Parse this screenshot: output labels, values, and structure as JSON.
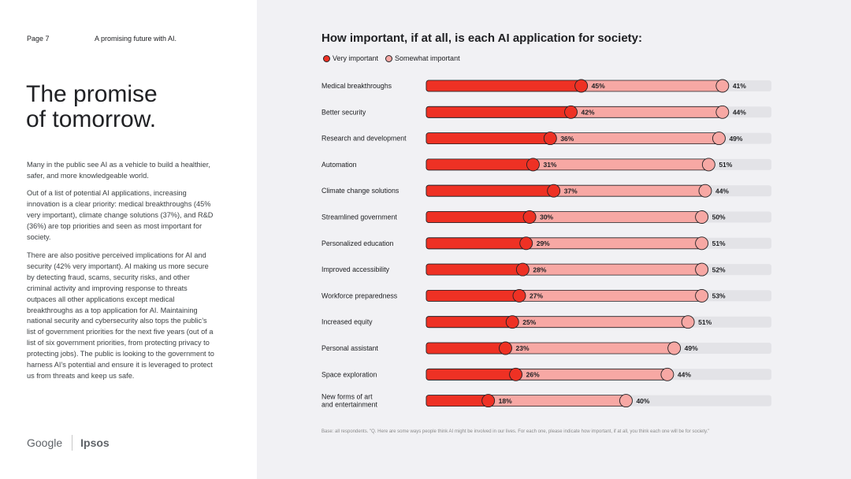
{
  "header": {
    "page": "Page 7",
    "section": "A promising future with AI."
  },
  "title": {
    "line1": "The promise",
    "line2": "of tomorrow."
  },
  "body": {
    "p1": "Many in the public see AI as a vehicle to build a healthier, safer, and more knowledgeable world.",
    "p2": "Out of a list of potential AI applications, increasing innovation is a clear priority: medical breakthroughs (45% very important), climate change solutions (37%), and R&D (36%) are top priorities and seen as most important for society.",
    "p3": "There are also positive perceived implications for AI and security (42% very important). AI making us more secure by detecting fraud, scams, security risks, and other criminal activity and improving response to threats outpaces all other applications except medical breakthroughs as a top application for AI. Maintaining national security and cybersecurity also tops the public’s list of government priorities for the next five years (out of a list of six government priorities, from protecting privacy to protecting jobs). The public is looking to the government to harness AI’s potential and ensure it is leveraged to protect us from threats and keep us safe."
  },
  "logos": {
    "google": "Google",
    "ipsos": "Ipsos"
  },
  "colors": {
    "very": "#ee3124",
    "somewhat": "#f7a8a4",
    "track": "#e3e3e7"
  },
  "chart_data": {
    "type": "bar",
    "stacked": true,
    "orientation": "horizontal",
    "title": "How important, if at all, is each AI application for society:",
    "legend": [
      "Very important",
      "Somewhat important"
    ],
    "xlim": [
      0,
      100
    ],
    "categories": [
      "Medical breakthroughs",
      "Better security",
      "Research and development",
      "Automation",
      "Climate change solutions",
      "Streamlined government",
      "Personalized education",
      "Improved accessibility",
      "Workforce preparedness",
      "Increased equity",
      "Personal assistant",
      "Space exploration",
      "New forms of art and entertainment"
    ],
    "series": [
      {
        "name": "Very important",
        "values": [
          45,
          42,
          36,
          31,
          37,
          30,
          29,
          28,
          27,
          25,
          23,
          26,
          18
        ]
      },
      {
        "name": "Somewhat important",
        "values": [
          41,
          44,
          49,
          51,
          44,
          50,
          51,
          52,
          53,
          51,
          49,
          44,
          40
        ]
      }
    ],
    "footnote": "Base: all respondents. \"Q. Here are some ways people think AI might be involved in our lives. For each one, please indicate how important, if at all, you think each one will be for society.\""
  }
}
